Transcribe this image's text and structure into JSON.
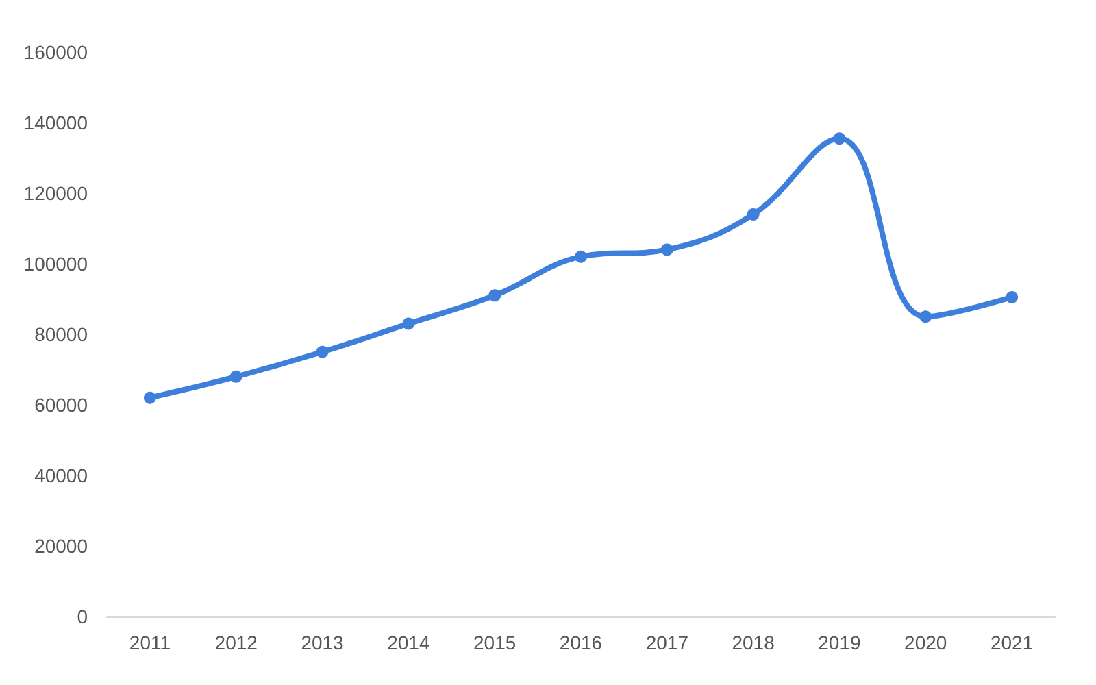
{
  "chart_data": {
    "type": "line",
    "categories": [
      "2011",
      "2012",
      "2013",
      "2014",
      "2015",
      "2016",
      "2017",
      "2018",
      "2019",
      "2020",
      "2021"
    ],
    "series": [
      {
        "color": "#3d7fdb",
        "values": [
          62000,
          68000,
          75000,
          83000,
          91000,
          102000,
          104000,
          114000,
          135500,
          85000,
          90500
        ]
      }
    ],
    "ylim": [
      0,
      160000
    ],
    "yticks": [
      0,
      20000,
      40000,
      60000,
      80000,
      100000,
      120000,
      140000,
      160000
    ],
    "grid": false,
    "marker": "circle",
    "line_style": "solid"
  }
}
